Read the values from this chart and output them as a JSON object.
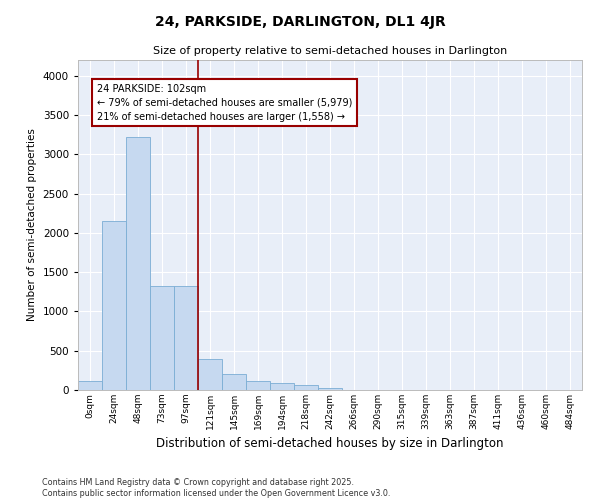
{
  "title": "24, PARKSIDE, DARLINGTON, DL1 4JR",
  "subtitle": "Size of property relative to semi-detached houses in Darlington",
  "xlabel": "Distribution of semi-detached houses by size in Darlington",
  "ylabel": "Number of semi-detached properties",
  "bar_color": "#c6d9f0",
  "bar_edge_color": "#7aadd4",
  "background_color": "#e8eef8",
  "grid_color": "#ffffff",
  "vline_color": "#990000",
  "vline_x_index": 4,
  "annotation_text": "24 PARKSIDE: 102sqm\n← 79% of semi-detached houses are smaller (5,979)\n21% of semi-detached houses are larger (1,558) →",
  "annotation_box_color": "#990000",
  "categories": [
    "0sqm",
    "24sqm",
    "48sqm",
    "73sqm",
    "97sqm",
    "121sqm",
    "145sqm",
    "169sqm",
    "194sqm",
    "218sqm",
    "242sqm",
    "266sqm",
    "290sqm",
    "315sqm",
    "339sqm",
    "363sqm",
    "387sqm",
    "411sqm",
    "436sqm",
    "460sqm",
    "484sqm"
  ],
  "values": [
    120,
    2150,
    3225,
    1325,
    1325,
    390,
    200,
    120,
    90,
    60,
    30,
    0,
    0,
    0,
    0,
    0,
    0,
    0,
    0,
    0,
    0
  ],
  "ylim": [
    0,
    4200
  ],
  "yticks": [
    0,
    500,
    1000,
    1500,
    2000,
    2500,
    3000,
    3500,
    4000
  ],
  "footer": "Contains HM Land Registry data © Crown copyright and database right 2025.\nContains public sector information licensed under the Open Government Licence v3.0.",
  "figsize": [
    6.0,
    5.0
  ],
  "dpi": 100
}
